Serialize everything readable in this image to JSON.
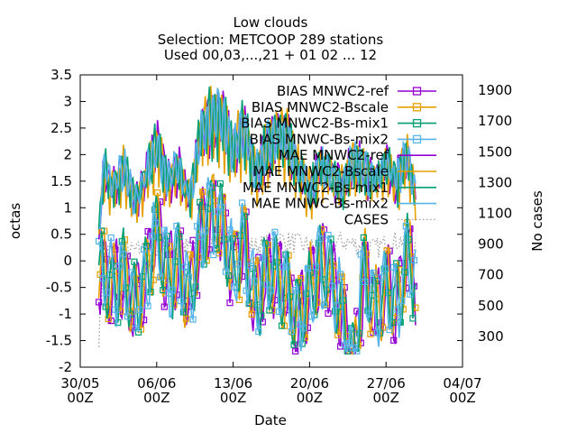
{
  "chart_data": {
    "type": "line",
    "title": [
      "Low clouds",
      "Selection: METCOOP    289 stations",
      "Used 00,03,...,21 + 01 02 ... 12"
    ],
    "xlabel": "Date",
    "ylabel": "octas",
    "y2label": "No cases",
    "ylim": [
      -2,
      3.5
    ],
    "y2lim": [
      100,
      2000
    ],
    "yticks": [
      "-2",
      "-1.5",
      "-1",
      "-0.5",
      "0",
      "0.5",
      "1",
      "1.5",
      "2",
      "2.5",
      "3",
      "3.5"
    ],
    "y2ticks": [
      "300",
      "500",
      "700",
      "900",
      "1100",
      "1300",
      "1500",
      "1700",
      "1900"
    ],
    "xticks": [
      {
        "label": "30/05",
        "sub": "00Z"
      },
      {
        "label": "06/06",
        "sub": "00Z"
      },
      {
        "label": "13/06",
        "sub": "00Z"
      },
      {
        "label": "20/06",
        "sub": "00Z"
      },
      {
        "label": "27/06",
        "sub": "00Z"
      },
      {
        "label": "04/07",
        "sub": "00Z"
      }
    ],
    "xlim_days": [
      0,
      35
    ],
    "grid": false,
    "legend_position": "top-right",
    "series": [
      {
        "name": "BIAS MNWC2-ref",
        "color": "#9400d3",
        "marker": "square",
        "style": "solid"
      },
      {
        "name": "BIAS MNWC2-Bscale",
        "color": "#e69f00",
        "marker": "square",
        "style": "solid"
      },
      {
        "name": "BIAS MNWC2-Bs-mix1",
        "color": "#009e73",
        "marker": "square-x",
        "style": "solid"
      },
      {
        "name": "BIAS MNWC-Bs-mix2",
        "color": "#56b4e9",
        "marker": "square",
        "style": "solid"
      },
      {
        "name": "MAE MNWC2-ref",
        "color": "#9400d3",
        "marker": "none",
        "style": "solid"
      },
      {
        "name": "MAE MNWC2-Bscale",
        "color": "#e69f00",
        "marker": "none",
        "style": "solid"
      },
      {
        "name": "MAE MNWC2-Bs-mix1",
        "color": "#009e73",
        "marker": "none",
        "style": "solid"
      },
      {
        "name": "MAE MNWC-Bs-mix2",
        "color": "#56b4e9",
        "marker": "none",
        "style": "solid"
      },
      {
        "name": "CASES",
        "color": "#a0a0a0",
        "marker": "none",
        "style": "dotted"
      }
    ],
    "mae_envelope_days": [
      1.7,
      2.2,
      3,
      4,
      5,
      6,
      7,
      8,
      9,
      10,
      11,
      12,
      13,
      14,
      15,
      16,
      17,
      18,
      19,
      20,
      21,
      22,
      23,
      24,
      25,
      26,
      27,
      28,
      29,
      30,
      30.8
    ],
    "mae_envelope_values": [
      0.6,
      2.1,
      1.6,
      2.1,
      1.3,
      1.9,
      2.6,
      1.8,
      2.1,
      1.4,
      2.8,
      3.2,
      3.2,
      2.4,
      3.0,
      2.0,
      2.5,
      2.9,
      2.7,
      2.0,
      1.6,
      2.1,
      2.0,
      1.7,
      2.3,
      2.0,
      1.8,
      2.1,
      1.8,
      2.4,
      1.2
    ],
    "bias_envelope_values": [
      0.3,
      0.5,
      0.1,
      0.4,
      -0.3,
      0.2,
      1.2,
      0.3,
      0.5,
      -0.1,
      1.1,
      1.6,
      1.3,
      0.4,
      1.0,
      -0.2,
      0.4,
      0.3,
      0.0,
      -0.6,
      0.1,
      0.6,
      0.2,
      -0.3,
      -1.5,
      0.5,
      -0.4,
      0.2,
      -0.3,
      0.8,
      0.1
    ],
    "cases_envelope_values": [
      300,
      850,
      880,
      860,
      850,
      870,
      880,
      860,
      900,
      870,
      860,
      900,
      940,
      920,
      900,
      880,
      900,
      930,
      920,
      900,
      880,
      870,
      900,
      920,
      900,
      880,
      870,
      900,
      920,
      930,
      880
    ]
  }
}
